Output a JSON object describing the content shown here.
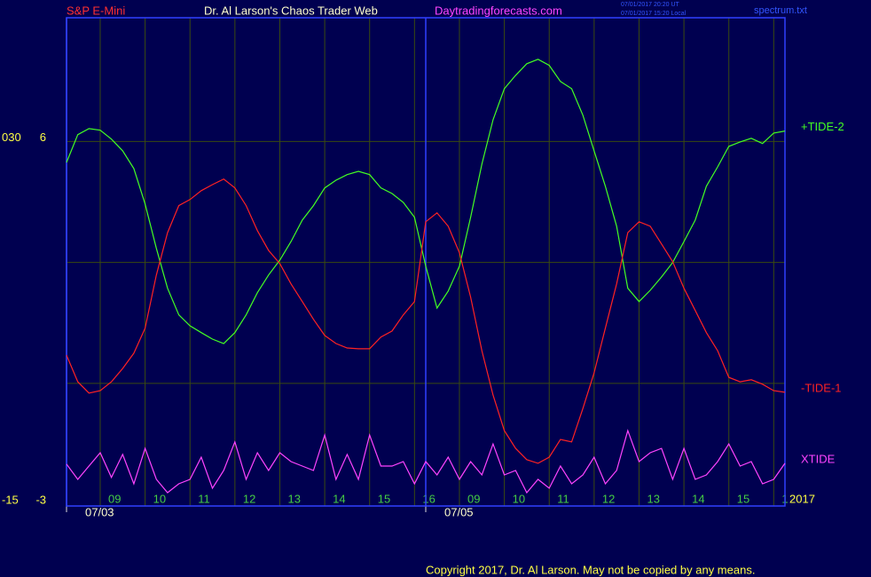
{
  "header": {
    "symbol": "S&P E-Mini",
    "site_title": "Dr. Al Larson's Chaos Trader Web",
    "site": "Daytradingforecasts.com",
    "time_ut": "07/01/2017 20:20 UT",
    "time_local": "07/01/2017 15:20 Local",
    "file": "spectrum.txt"
  },
  "footer": {
    "copyright": "Copyright 2017, Dr. Al Larson. May not be copied by any means.",
    "year": "2017"
  },
  "chart_data": {
    "type": "line",
    "xlim": [
      0,
      16
    ],
    "ylim": [
      -3.04,
      9.07
    ],
    "yticks": [
      -3,
      6
    ],
    "grid_y": [
      0,
      3,
      6
    ],
    "y2lim": [
      -15.2,
      45.35
    ],
    "y2ticks": [
      -15,
      {
        "value": 30,
        "label": "030"
      }
    ],
    "xticks": [
      {
        "value": 0.75,
        "label": "09"
      },
      {
        "value": 1.75,
        "label": "10"
      },
      {
        "value": 2.75,
        "label": "11"
      },
      {
        "value": 3.75,
        "label": "12"
      },
      {
        "value": 4.75,
        "label": "13"
      },
      {
        "value": 5.75,
        "label": "14"
      },
      {
        "value": 6.75,
        "label": "15"
      },
      {
        "value": 7.75,
        "label": "16"
      },
      {
        "value": 8.75,
        "label": "09"
      },
      {
        "value": 9.75,
        "label": "10"
      },
      {
        "value": 10.75,
        "label": "11"
      },
      {
        "value": 11.75,
        "label": "12"
      },
      {
        "value": 12.75,
        "label": "13"
      },
      {
        "value": 13.75,
        "label": "14"
      },
      {
        "value": 14.75,
        "label": "15"
      },
      {
        "value": 15.75,
        "label": "1"
      }
    ],
    "date_ticks": [
      {
        "value": 0,
        "label": "07/03"
      },
      {
        "value": 8,
        "label": "07/05"
      }
    ],
    "grid": true,
    "x": [
      0,
      0.25,
      0.5,
      0.75,
      1,
      1.25,
      1.5,
      1.75,
      2,
      2.25,
      2.5,
      2.75,
      3,
      3.25,
      3.5,
      3.75,
      4,
      4.25,
      4.5,
      4.75,
      5,
      5.25,
      5.5,
      5.75,
      6,
      6.25,
      6.5,
      6.75,
      7,
      7.25,
      7.5,
      7.75,
      8,
      8.25,
      8.5,
      8.75,
      9,
      9.25,
      9.5,
      9.75,
      10,
      10.25,
      10.5,
      10.75,
      11,
      11.25,
      11.5,
      11.75,
      12,
      12.25,
      12.5,
      12.75,
      13,
      13.25,
      13.5,
      13.75,
      14,
      14.25,
      14.5,
      14.75,
      15,
      15.25,
      15.5,
      15.75,
      16
    ],
    "series": [
      {
        "name": "+TIDE-2",
        "color": "#44ff22",
        "values": [
          5.48,
          6.17,
          6.32,
          6.28,
          6.06,
          5.77,
          5.33,
          4.45,
          3.35,
          2.36,
          1.7,
          1.43,
          1.26,
          1.1,
          0.99,
          1.26,
          1.7,
          2.25,
          2.69,
          3.06,
          3.52,
          4.05,
          4.41,
          4.85,
          5.04,
          5.18,
          5.26,
          5.18,
          4.85,
          4.71,
          4.49,
          4.12,
          2.91,
          1.87,
          2.29,
          2.91,
          4.12,
          5.44,
          6.54,
          7.31,
          7.64,
          7.93,
          8.04,
          7.89,
          7.49,
          7.31,
          6.65,
          5.77,
          4.89,
          3.9,
          2.36,
          2.03,
          2.31,
          2.64,
          3.0,
          3.52,
          4.05,
          4.89,
          5.37,
          5.88,
          5.99,
          6.08,
          5.95,
          6.21,
          6.26
        ]
      },
      {
        "name": "-TIDE-1",
        "color": "#ff2222",
        "values": [
          0.7,
          0.04,
          -0.24,
          -0.18,
          0.04,
          0.37,
          0.75,
          1.37,
          2.69,
          3.74,
          4.41,
          4.56,
          4.78,
          4.93,
          5.07,
          4.85,
          4.41,
          3.79,
          3.3,
          2.97,
          2.47,
          2.03,
          1.59,
          1.19,
          0.99,
          0.88,
          0.86,
          0.86,
          1.15,
          1.3,
          1.7,
          2.03,
          4.01,
          4.23,
          3.9,
          3.24,
          2.14,
          0.81,
          -0.29,
          -1.17,
          -1.61,
          -1.89,
          -1.98,
          -1.83,
          -1.39,
          -1.45,
          -0.62,
          0.26,
          1.37,
          2.47,
          3.74,
          4.01,
          3.9,
          3.46,
          3.02,
          2.36,
          1.81,
          1.26,
          0.81,
          0.15,
          0.04,
          0.09,
          -0.02,
          -0.18,
          -0.22
        ]
      },
      {
        "name": "XTIDE",
        "color": "#ff44ff",
        "values": [
          -2.0,
          -2.38,
          -2.05,
          -1.72,
          -2.33,
          -1.76,
          -2.49,
          -1.61,
          -2.38,
          -2.71,
          -2.49,
          -2.38,
          -1.83,
          -2.6,
          -2.16,
          -1.45,
          -2.38,
          -1.72,
          -2.16,
          -1.72,
          -1.94,
          -2.05,
          -2.16,
          -1.28,
          -2.38,
          -1.76,
          -2.38,
          -1.28,
          -2.05,
          -2.05,
          -1.94,
          -2.49,
          -1.94,
          -2.27,
          -1.83,
          -2.38,
          -1.94,
          -2.27,
          -1.5,
          -2.27,
          -2.16,
          -2.71,
          -2.38,
          -2.6,
          -2.05,
          -2.49,
          -2.27,
          -1.83,
          -2.49,
          -2.16,
          -1.17,
          -1.94,
          -1.72,
          -1.61,
          -2.38,
          -1.61,
          -2.38,
          -2.27,
          -1.94,
          -1.5,
          -2.05,
          -1.94,
          -2.49,
          -2.38,
          -1.98
        ]
      }
    ]
  }
}
